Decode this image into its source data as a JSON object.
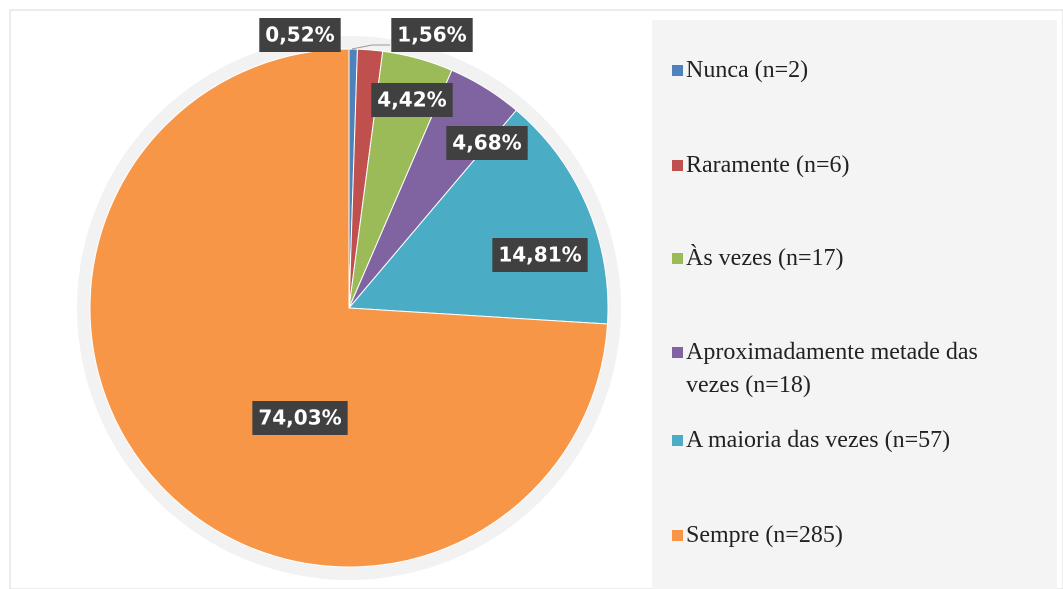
{
  "chart_data": {
    "type": "pie",
    "categories": [
      "Nunca (n=2)",
      "Raramente (n=6)",
      "Às vezes (n=17)",
      "Aproximadamente metade das vezes (n=18)",
      "A maioria das vezes (n=57)",
      "Sempre (n=285)"
    ],
    "values": [
      0.52,
      1.56,
      4.42,
      4.68,
      14.81,
      74.03
    ],
    "value_labels": [
      "0,52%",
      "1,56%",
      "4,42%",
      "4,68%",
      "14,81%",
      "74,03%"
    ],
    "colors": [
      "#4f81bd",
      "#c0504d",
      "#9bbb59",
      "#8064a2",
      "#4bacc6",
      "#f79646"
    ],
    "legend": "right"
  }
}
